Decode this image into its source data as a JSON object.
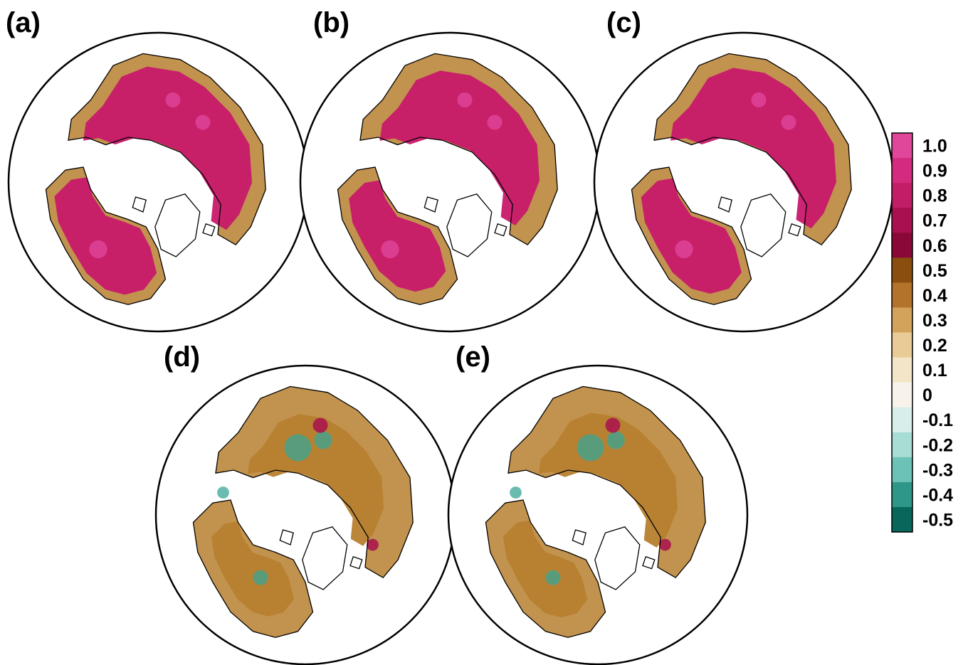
{
  "panels": [
    {
      "label": "(a)",
      "dominant": "pink",
      "intensity": 0.85
    },
    {
      "label": "(b)",
      "dominant": "pink",
      "intensity": 0.7
    },
    {
      "label": "(c)",
      "dominant": "pink",
      "intensity": 0.8
    },
    {
      "label": "(d)",
      "dominant": "brown",
      "intensity": 0.3
    },
    {
      "label": "(e)",
      "dominant": "brown",
      "intensity": 0.35
    }
  ],
  "colorbar": {
    "labels": [
      "1.0",
      "0.9",
      "0.8",
      "0.7",
      "0.6",
      "0.5",
      "0.4",
      "0.3",
      "0.2",
      "0.1",
      "0",
      "-0.1",
      "-0.2",
      "-0.3",
      "-0.4",
      "-0.5"
    ],
    "colors": [
      "#e0469a",
      "#d42b7e",
      "#c21e68",
      "#a8104f",
      "#8a0838",
      "#8a4f0e",
      "#b4732a",
      "#d3a35c",
      "#e8cb96",
      "#f3e6c8",
      "#f7f3ea",
      "#d8eeea",
      "#a8ddd5",
      "#6cc2b6",
      "#2f978a",
      "#08665b"
    ]
  },
  "colors": {
    "pink": "#c8186a",
    "brown": "#b7802f",
    "teal": "#3aa596",
    "coast": "#000000"
  }
}
